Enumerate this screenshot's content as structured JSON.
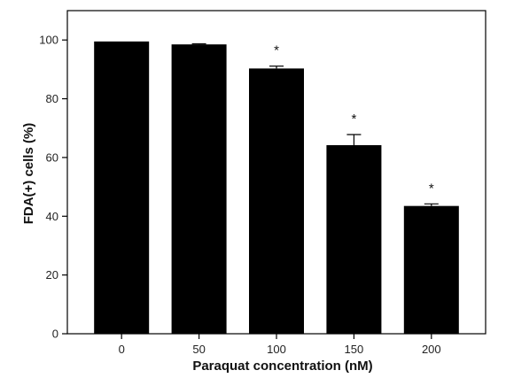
{
  "chart_data": {
    "type": "bar",
    "categories": [
      "0",
      "50",
      "100",
      "150",
      "200"
    ],
    "values": [
      99.5,
      98.5,
      90.3,
      64.2,
      43.5
    ],
    "errors": [
      0,
      0.2,
      0.8,
      3.6,
      0.7
    ],
    "annotations": [
      "",
      "",
      "*",
      "*",
      "*"
    ],
    "xlabel": "Paraquat concentration (nM)",
    "ylabel": "FDA(+) cells (%)",
    "ylim": [
      0,
      110
    ],
    "yticks": [
      0,
      20,
      40,
      60,
      80,
      100
    ],
    "bar_color": "#000000",
    "grid": false
  }
}
